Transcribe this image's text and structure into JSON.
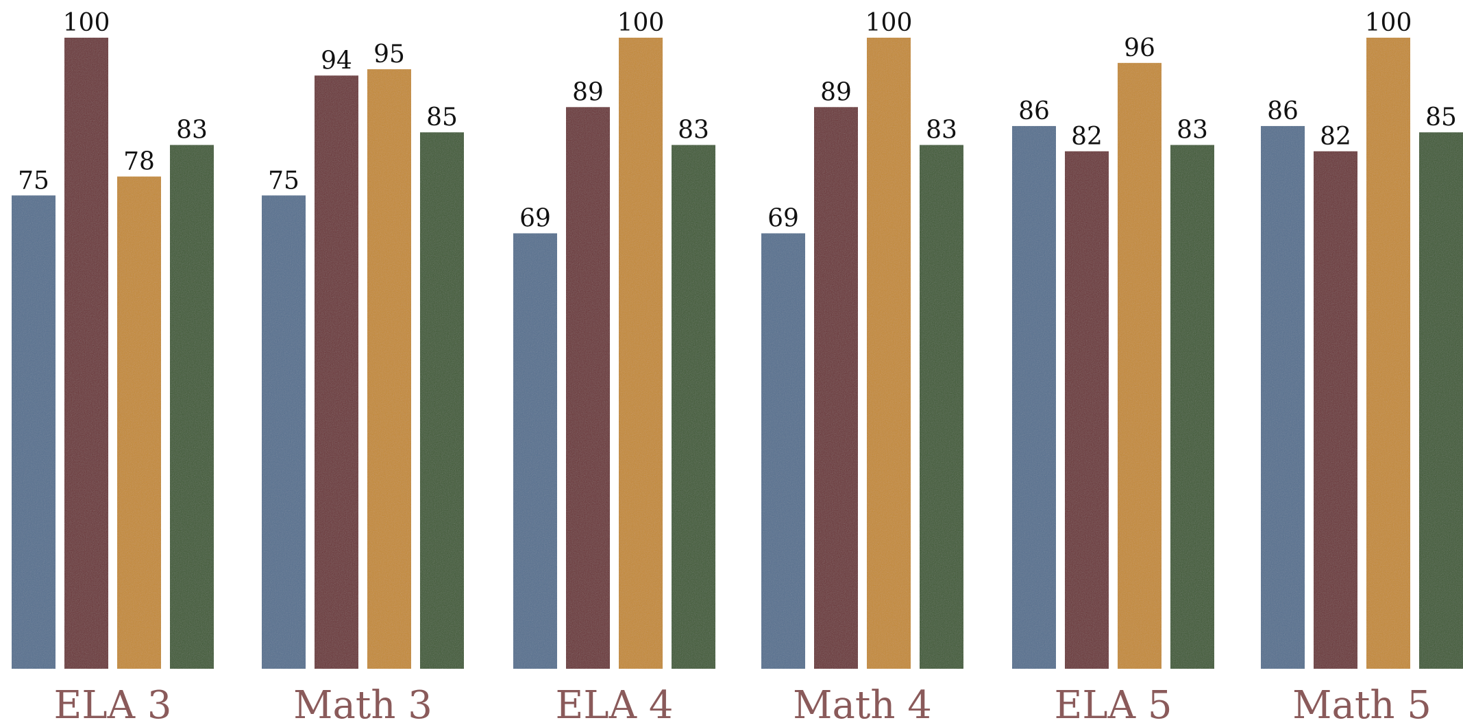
{
  "chart_data": {
    "type": "bar",
    "title": "",
    "xlabel": "",
    "ylabel": "",
    "ylim": [
      0,
      100
    ],
    "grid": false,
    "legend": "none",
    "categories": [
      "ELA 3",
      "Math 3",
      "ELA 4",
      "Math 4",
      "ELA 5",
      "Math 5"
    ],
    "series": [
      {
        "color": "#556f8f",
        "values": [
          75,
          75,
          69,
          69,
          86,
          86
        ]
      },
      {
        "color": "#6b3336",
        "values": [
          100,
          94,
          89,
          89,
          82,
          82
        ]
      },
      {
        "color": "#c48a32",
        "values": [
          78,
          95,
          100,
          100,
          96,
          100
        ]
      },
      {
        "color": "#3d5a33",
        "values": [
          83,
          85,
          83,
          83,
          83,
          85
        ]
      }
    ],
    "value_labels": [
      [
        "75",
        "75",
        "69",
        "69",
        "86",
        "86"
      ],
      [
        "100",
        "94",
        "89",
        "89",
        "82",
        "82"
      ],
      [
        "78",
        "95",
        "100",
        "100",
        "96",
        "100"
      ],
      [
        "83",
        "85",
        "83",
        "83",
        "83",
        "85"
      ]
    ]
  }
}
